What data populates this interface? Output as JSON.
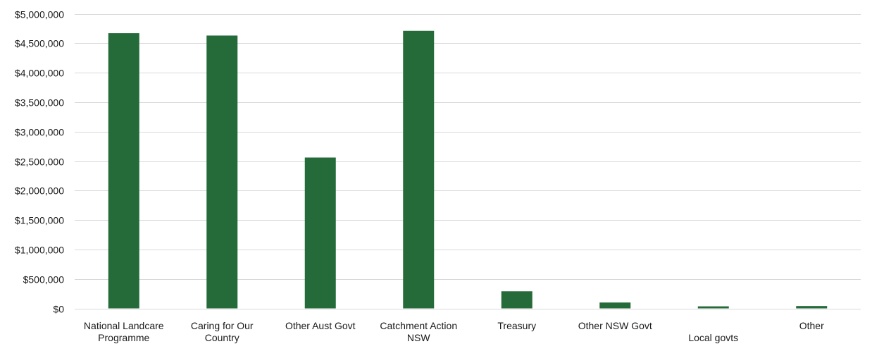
{
  "chart_data": {
    "type": "bar",
    "title": "",
    "xlabel": "",
    "ylabel": "",
    "categories": [
      [
        "National Landcare",
        "Programme"
      ],
      [
        "Caring for Our",
        "Country"
      ],
      [
        "Other Aust Govt"
      ],
      [
        "Catchment Action",
        "NSW"
      ],
      [
        "Treasury"
      ],
      [
        "Other NSW Govt"
      ],
      [
        "",
        "Local govts"
      ],
      [
        "Other"
      ]
    ],
    "values": [
      4670000,
      4630000,
      2560000,
      4710000,
      290000,
      100000,
      35000,
      40000
    ],
    "ylim": [
      0,
      5000000
    ],
    "y_ticks": [
      0,
      500000,
      1000000,
      1500000,
      2000000,
      2500000,
      3000000,
      3500000,
      4000000,
      4500000,
      5000000
    ],
    "y_tick_labels": [
      "$0",
      "$500,000",
      "$1,000,000",
      "$1,500,000",
      "$2,000,000",
      "$2,500,000",
      "$3,000,000",
      "$3,500,000",
      "$4,000,000",
      "$4,500,000",
      "$5,000,000"
    ],
    "bar_color": "#256b3a",
    "grid": true,
    "legend": "none"
  }
}
